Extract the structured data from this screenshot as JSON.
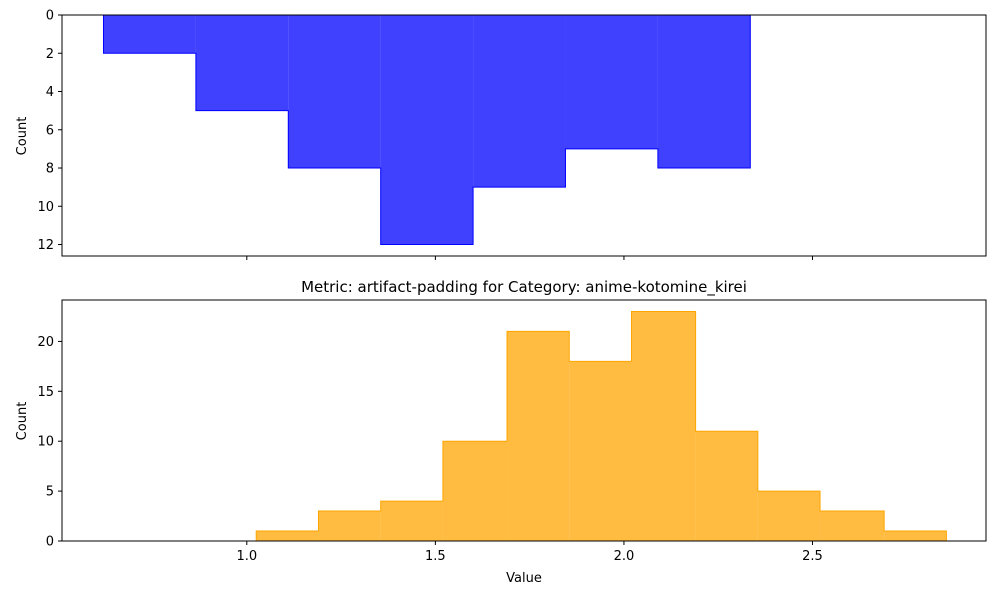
{
  "chart_data": [
    {
      "type": "bar",
      "style": "stepfilled-histogram",
      "title": "",
      "xlabel": "",
      "ylabel": "Count",
      "ylim": [
        0,
        12.6
      ],
      "yticks": [
        "0",
        "2",
        "4",
        "6",
        "8",
        "10",
        "12"
      ],
      "bin_edges": [
        0.62,
        0.865,
        1.11,
        1.355,
        1.6,
        1.845,
        2.09,
        2.335
      ],
      "values": [
        2,
        5,
        8,
        12,
        9,
        7,
        8
      ],
      "color": "#0000ff",
      "alpha": 0.75,
      "grid": false
    },
    {
      "type": "bar",
      "style": "stepfilled-histogram",
      "title": "Metric: artifact-padding for Category: anime-kotomine_kirei",
      "xlabel": "Value",
      "ylabel": "Count",
      "ylim": [
        24.15,
        0
      ],
      "y_inverted": true,
      "yticks": [
        "0",
        "5",
        "10",
        "15",
        "20"
      ],
      "bin_edges": [
        1.025,
        1.19,
        1.355,
        1.52,
        1.69,
        1.855,
        2.02,
        2.19,
        2.355,
        2.52,
        2.69,
        2.855
      ],
      "values": [
        1,
        3,
        4,
        10,
        21,
        18,
        23,
        11,
        5,
        3,
        1
      ],
      "color": "#ffa500",
      "alpha": 0.75,
      "grid": false
    }
  ],
  "xaxis": {
    "range": [
      0.51,
      2.96
    ],
    "ticks": [
      "1.0",
      "1.5",
      "2.0",
      "2.5"
    ]
  }
}
